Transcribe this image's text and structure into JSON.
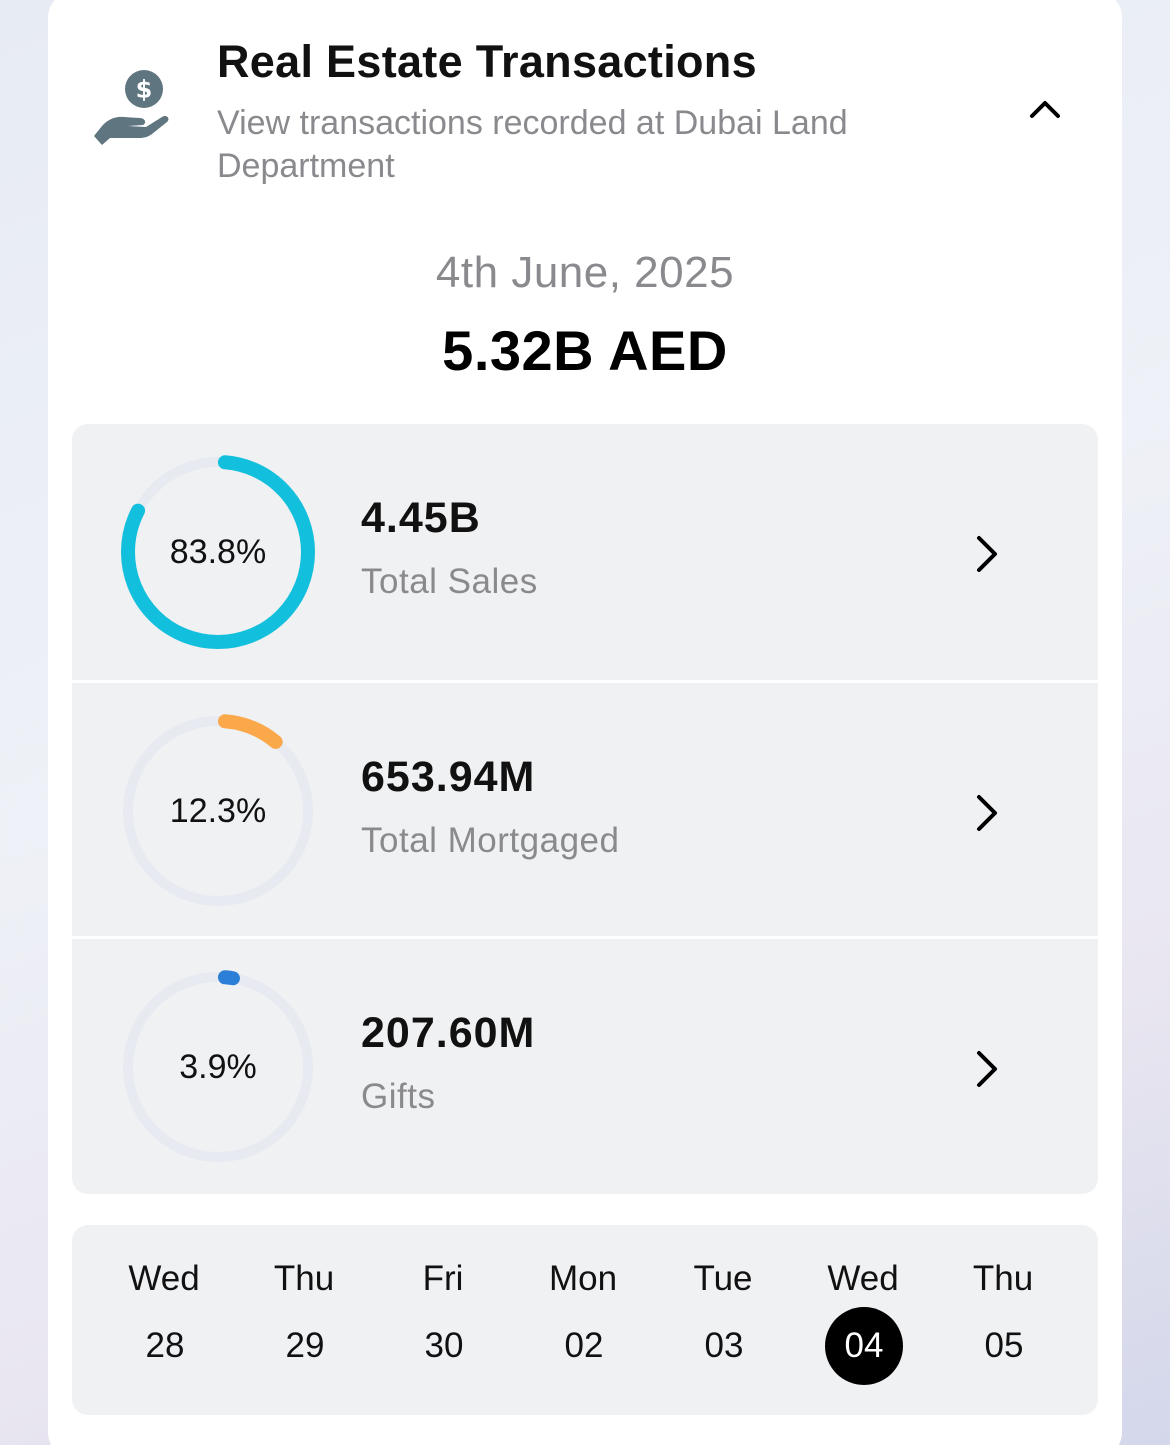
{
  "header": {
    "title": "Real Estate Transactions",
    "subtitle": "View transactions recorded at Dubai Land Department",
    "icon": "hand-holding-dollar-icon",
    "toggle_icon": "chevron-up-icon"
  },
  "summary": {
    "date": "4th June, 2025",
    "total": "5.32B AED"
  },
  "breakdown": [
    {
      "percent_label": "83.8%",
      "percent": 83.8,
      "value": "4.45B",
      "label": "Total Sales",
      "color": "#12bfdc"
    },
    {
      "percent_label": "12.3%",
      "percent": 12.3,
      "value": "653.94M",
      "label": "Total Mortgaged",
      "color": "#fba84a"
    },
    {
      "percent_label": "3.9%",
      "percent": 3.9,
      "value": "207.60M",
      "label": "Gifts",
      "color": "#2b7fd6"
    }
  ],
  "ring_track_color": "#e8eaf1",
  "days": [
    {
      "name": "Wed",
      "num": "28",
      "selected": false
    },
    {
      "name": "Thu",
      "num": "29",
      "selected": false
    },
    {
      "name": "Fri",
      "num": "30",
      "selected": false
    },
    {
      "name": "Mon",
      "num": "02",
      "selected": false
    },
    {
      "name": "Tue",
      "num": "03",
      "selected": false
    },
    {
      "name": "Wed",
      "num": "04",
      "selected": true
    },
    {
      "name": "Thu",
      "num": "05",
      "selected": false
    }
  ]
}
